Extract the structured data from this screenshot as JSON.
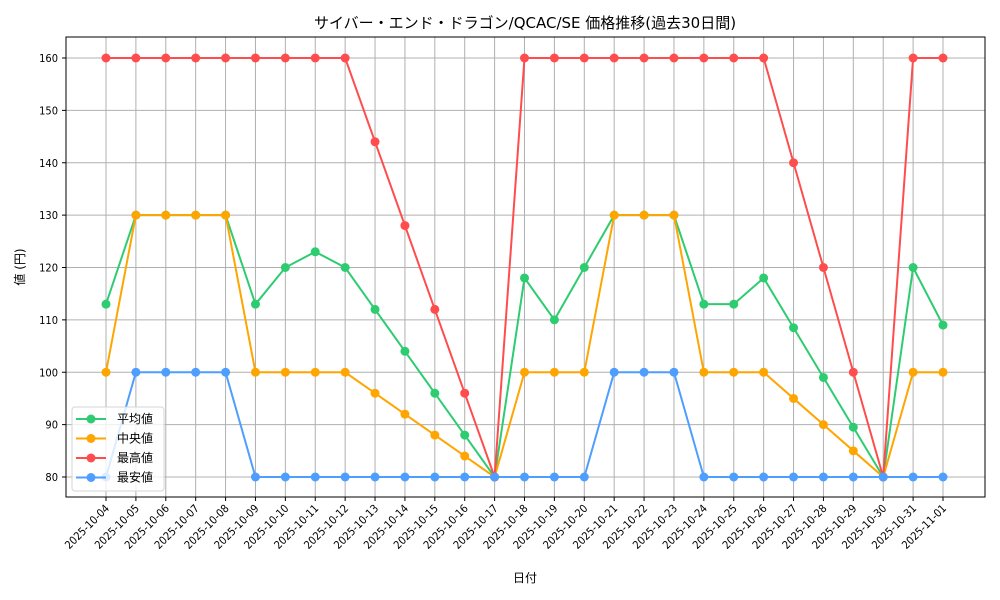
{
  "chart_data": {
    "type": "line",
    "title": "サイバー・エンド・ドラゴン/QCAC/SE 価格推移(過去30日間)",
    "xlabel": "日付",
    "ylabel": "値 (円)",
    "ylim": [
      76,
      164
    ],
    "yticks": [
      80,
      90,
      100,
      110,
      120,
      130,
      140,
      150,
      160
    ],
    "grid": true,
    "legend_position": "lower left",
    "categories": [
      "2025-10-04",
      "2025-10-05",
      "2025-10-06",
      "2025-10-07",
      "2025-10-08",
      "2025-10-09",
      "2025-10-10",
      "2025-10-11",
      "2025-10-12",
      "2025-10-13",
      "2025-10-14",
      "2025-10-15",
      "2025-10-16",
      "2025-10-17",
      "2025-10-18",
      "2025-10-19",
      "2025-10-20",
      "2025-10-21",
      "2025-10-22",
      "2025-10-23",
      "2025-10-24",
      "2025-10-25",
      "2025-10-26",
      "2025-10-27",
      "2025-10-28",
      "2025-10-29",
      "2025-10-30",
      "2025-10-31",
      "2025-11-01"
    ],
    "series": [
      {
        "name": "平均値",
        "color": "#2ecc71",
        "values": [
          113,
          130,
          130,
          130,
          130,
          113,
          120,
          123,
          120,
          112,
          104,
          96,
          88,
          80,
          118,
          110,
          120,
          130,
          130,
          130,
          113,
          113,
          118,
          108.5,
          99,
          89.5,
          80,
          120,
          109
        ]
      },
      {
        "name": "中央値",
        "color": "#ffa500",
        "values": [
          100,
          130,
          130,
          130,
          130,
          100,
          100,
          100,
          100,
          96,
          92,
          88,
          84,
          80,
          100,
          100,
          100,
          130,
          130,
          130,
          100,
          100,
          100,
          95,
          90,
          85,
          80,
          100,
          100
        ]
      },
      {
        "name": "最高値",
        "color": "#ff4d4d",
        "values": [
          160,
          160,
          160,
          160,
          160,
          160,
          160,
          160,
          160,
          144,
          128,
          112,
          96,
          80,
          160,
          160,
          160,
          160,
          160,
          160,
          160,
          160,
          160,
          140,
          120,
          100,
          80,
          160,
          160
        ]
      },
      {
        "name": "最安値",
        "color": "#4d9eff",
        "values": [
          80,
          100,
          100,
          100,
          100,
          80,
          80,
          80,
          80,
          80,
          80,
          80,
          80,
          80,
          80,
          80,
          80,
          100,
          100,
          100,
          80,
          80,
          80,
          80,
          80,
          80,
          80,
          80,
          80
        ]
      }
    ]
  }
}
